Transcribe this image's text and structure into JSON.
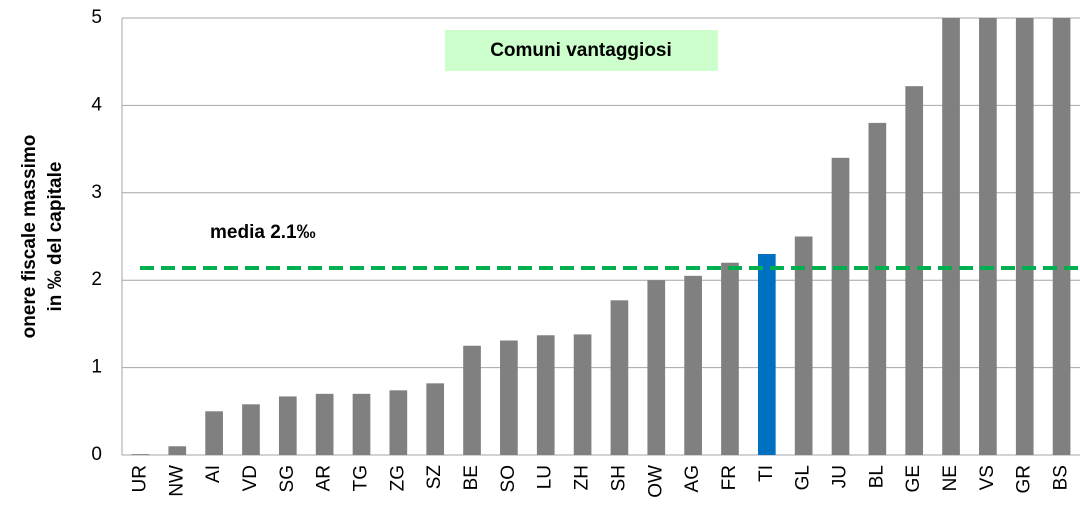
{
  "chart_data": {
    "type": "bar",
    "ylabel": [
      "onere fiscale massimo",
      "in ‰ del capitale"
    ],
    "annotation": "Comuni vantaggiosi",
    "categories": [
      "UR",
      "NW",
      "AI",
      "VD",
      "SG",
      "AR",
      "TG",
      "ZG",
      "SZ",
      "BE",
      "SO",
      "LU",
      "ZH",
      "SH",
      "OW",
      "AG",
      "FR",
      "TI",
      "GL",
      "JU",
      "BL",
      "GE",
      "NE",
      "VS",
      "GR",
      "BS"
    ],
    "values": [
      0.01,
      0.1,
      0.5,
      0.58,
      0.67,
      0.7,
      0.7,
      0.74,
      0.82,
      1.25,
      1.31,
      1.37,
      1.38,
      1.77,
      2.0,
      2.05,
      2.2,
      2.3,
      2.5,
      3.4,
      3.8,
      4.22,
      5,
      5,
      5,
      5
    ],
    "colors": [
      "#808080",
      "#808080",
      "#808080",
      "#808080",
      "#808080",
      "#808080",
      "#808080",
      "#808080",
      "#808080",
      "#808080",
      "#808080",
      "#808080",
      "#808080",
      "#808080",
      "#808080",
      "#808080",
      "#808080",
      "#0070c0",
      "#808080",
      "#808080",
      "#808080",
      "#808080",
      "#808080",
      "#808080",
      "#808080",
      "#808080"
    ],
    "mean_line": {
      "value": 2.14,
      "label": "media 2.1‰",
      "color": "#00b050"
    },
    "ylim": [
      0,
      5
    ],
    "yticks": [
      0,
      1,
      2,
      3,
      4,
      5
    ],
    "grid": true
  }
}
